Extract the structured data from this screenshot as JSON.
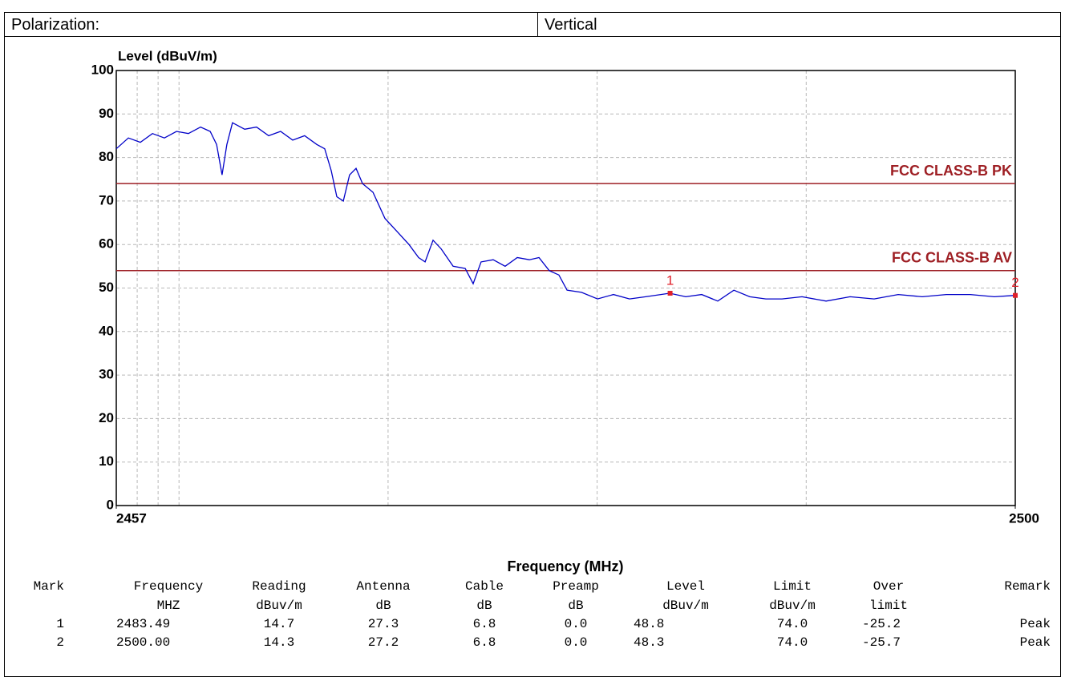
{
  "header": {
    "label": "Polarization:",
    "value": "Vertical"
  },
  "chart_data": {
    "type": "line",
    "ylabel": "Level (dBuV/m)",
    "xlabel": "Frequency (MHz)",
    "xlim": [
      2457,
      2500
    ],
    "xticks": [
      2457,
      2500
    ],
    "xgrid": [
      2458,
      2459,
      2460,
      2470,
      2480,
      2490
    ],
    "ylim": [
      0,
      100
    ],
    "yticks": [
      0,
      10,
      20,
      30,
      40,
      50,
      60,
      70,
      80,
      90,
      100
    ],
    "grid": true,
    "x": [
      2457.0,
      2457.58,
      2458.15,
      2458.73,
      2459.3,
      2459.88,
      2460.45,
      2461.03,
      2461.49,
      2461.8,
      2462.06,
      2462.29,
      2462.56,
      2463.14,
      2463.71,
      2464.29,
      2464.86,
      2465.44,
      2466.01,
      2466.59,
      2466.97,
      2467.28,
      2467.55,
      2467.86,
      2468.16,
      2468.47,
      2468.78,
      2469.28,
      2469.85,
      2470.43,
      2471.0,
      2471.46,
      2471.77,
      2472.15,
      2472.54,
      2473.11,
      2473.69,
      2474.07,
      2474.45,
      2475.03,
      2475.6,
      2476.18,
      2476.76,
      2477.22,
      2477.71,
      2478.17,
      2478.56,
      2479.25,
      2480.02,
      2480.78,
      2481.55,
      2482.32,
      2483.47,
      2484.24,
      2485.0,
      2485.77,
      2486.54,
      2487.3,
      2488.07,
      2488.84,
      2489.8,
      2490.95,
      2492.1,
      2493.25,
      2494.4,
      2495.55,
      2496.7,
      2497.85,
      2499.0,
      2500.0
    ],
    "series": [
      {
        "color": "#0000c8",
        "values": [
          82,
          84.5,
          83.5,
          85.5,
          84.5,
          86,
          85.5,
          87,
          86,
          83,
          76,
          83,
          88,
          86.5,
          87,
          85,
          86,
          84,
          85,
          83,
          82,
          77,
          71,
          70,
          76,
          77.5,
          74,
          72,
          66,
          63,
          60,
          57,
          56,
          61,
          59,
          55,
          54.5,
          51,
          56,
          56.5,
          55,
          57,
          56.5,
          57,
          54,
          53,
          49.5,
          49,
          47.5,
          48.5,
          47.5,
          48,
          48.8,
          48,
          48.5,
          47,
          49.5,
          48,
          47.5,
          47.5,
          48,
          47,
          48,
          47.5,
          48.5,
          48,
          48.5,
          48.5,
          48,
          48.3
        ]
      }
    ],
    "limits": [
      {
        "label": "FCC CLASS-B PK",
        "value": 74,
        "color": "#9e1f24"
      },
      {
        "label": "FCC CLASS-B AV",
        "value": 54,
        "color": "#9e1f24"
      }
    ],
    "markers": [
      {
        "label": "1",
        "x": 2483.49,
        "y": 48.8
      },
      {
        "label": "2",
        "x": 2500,
        "y": 48.3
      }
    ],
    "marker_color": "#e0202a"
  },
  "table": {
    "columns": [
      {
        "name": "Mark"
      },
      {
        "name": "Frequency",
        "unit": "MHZ"
      },
      {
        "name": "Reading",
        "unit": "dBuv/m"
      },
      {
        "name": "Antenna",
        "unit": "dB"
      },
      {
        "name": "Cable",
        "unit": "dB"
      },
      {
        "name": "Preamp",
        "unit": "dB"
      },
      {
        "name": "Level",
        "unit": "dBuv/m"
      },
      {
        "name": "Limit",
        "unit": "dBuv/m"
      },
      {
        "name": "Over",
        "unit": "limit"
      },
      {
        "name": "Remark"
      }
    ],
    "rows": [
      [
        "1",
        "2483.49",
        "14.7",
        "27.3",
        "6.8",
        "0.0",
        "48.8",
        "74.0",
        "-25.2",
        "Peak"
      ],
      [
        "2",
        "2500.00",
        "14.3",
        "27.2",
        "6.8",
        "0.0",
        "48.3",
        "74.0",
        "-25.7",
        "Peak"
      ]
    ]
  }
}
